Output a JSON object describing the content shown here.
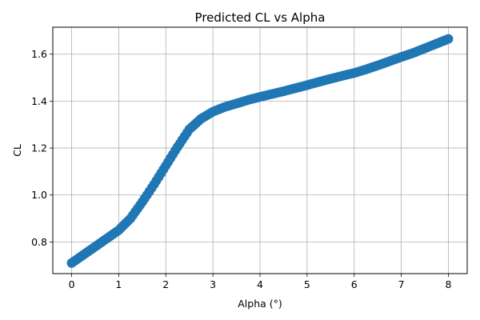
{
  "chart_data": {
    "type": "scatter",
    "title": "Predicted CL vs Alpha",
    "xlabel": "Alpha (°)",
    "ylabel": "CL",
    "xlim": [
      -0.4,
      8.4
    ],
    "ylim": [
      0.665,
      1.715
    ],
    "xticks": [
      0,
      1,
      2,
      3,
      4,
      5,
      6,
      7,
      8
    ],
    "xtick_labels": [
      "0",
      "1",
      "2",
      "3",
      "4",
      "5",
      "6",
      "7",
      "8"
    ],
    "yticks": [
      0.8,
      1.0,
      1.2,
      1.4,
      1.6
    ],
    "ytick_labels": [
      "0.8",
      "1.0",
      "1.2",
      "1.4",
      "1.6"
    ],
    "grid": true,
    "color": "#1f77b4",
    "series": [
      {
        "x": [
          0,
          0.25,
          0.5,
          0.75,
          1.0,
          1.25,
          1.5,
          1.75,
          2.0,
          2.25,
          2.5,
          2.75,
          3.0,
          3.25,
          3.5,
          3.75,
          4.0,
          4.25,
          4.5,
          4.75,
          5.0,
          5.25,
          5.5,
          5.75,
          6.0,
          6.25,
          6.5,
          6.75,
          7.0,
          7.25,
          7.5,
          7.75,
          8.0
        ],
        "y": [
          0.71,
          0.745,
          0.78,
          0.815,
          0.85,
          0.9,
          0.97,
          1.045,
          1.125,
          1.205,
          1.28,
          1.325,
          1.355,
          1.375,
          1.39,
          1.405,
          1.418,
          1.43,
          1.442,
          1.455,
          1.468,
          1.482,
          1.495,
          1.508,
          1.52,
          1.535,
          1.552,
          1.57,
          1.588,
          1.605,
          1.625,
          1.645,
          1.665
        ]
      }
    ]
  }
}
